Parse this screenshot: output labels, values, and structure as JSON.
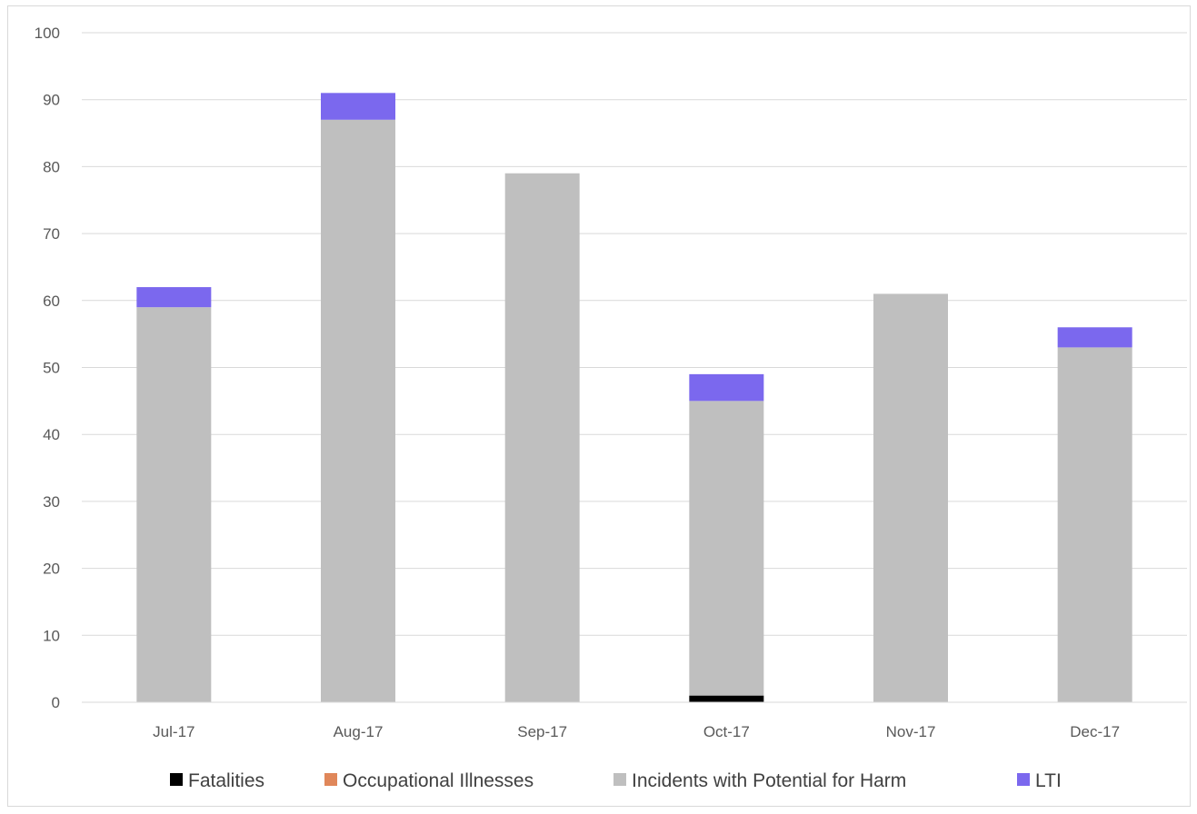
{
  "chart_data": {
    "type": "bar",
    "stacked": true,
    "categories": [
      "Jul-17",
      "Aug-17",
      "Sep-17",
      "Oct-17",
      "Nov-17",
      "Dec-17"
    ],
    "series": [
      {
        "name": "Fatalities",
        "color": "#000000",
        "values": [
          0,
          0,
          0,
          1,
          0,
          0
        ]
      },
      {
        "name": "Occupational Illnesses",
        "color": "#e0875a",
        "values": [
          0,
          0,
          0,
          0,
          0,
          0
        ]
      },
      {
        "name": "Incidents with Potential for Harm",
        "color": "#bfbfbf",
        "values": [
          59,
          87,
          79,
          44,
          61,
          53
        ]
      },
      {
        "name": "LTI",
        "color": "#7b68ee",
        "values": [
          3,
          4,
          0,
          4,
          0,
          3
        ]
      }
    ],
    "ylim": [
      0,
      100
    ],
    "yticks": [
      0,
      10,
      20,
      30,
      40,
      50,
      60,
      70,
      80,
      90,
      100
    ],
    "grid": true,
    "legend_position": "bottom"
  }
}
